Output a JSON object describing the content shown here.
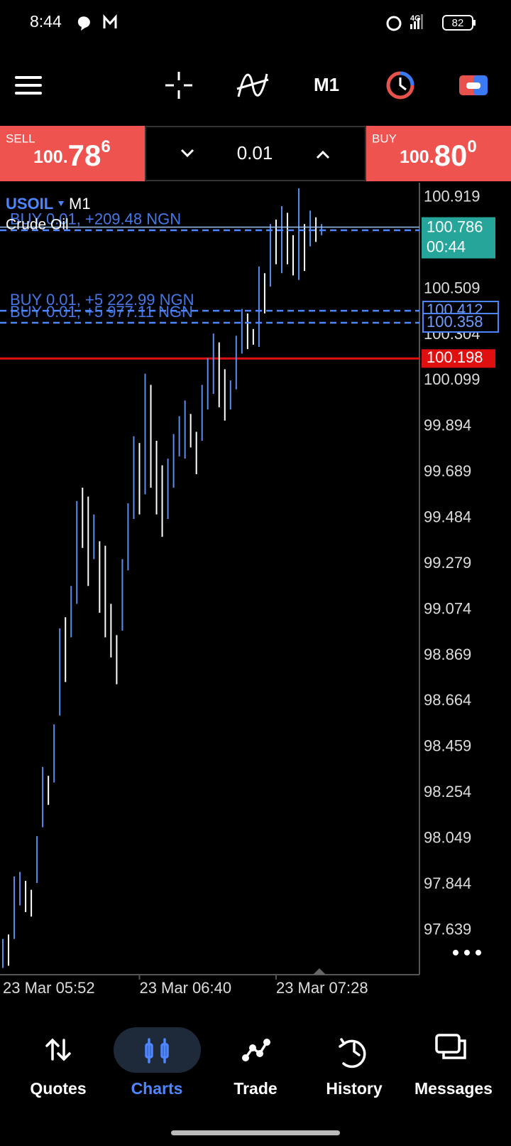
{
  "status_bar": {
    "time": "8:44",
    "network": "4G",
    "battery": "82"
  },
  "toolbar": {
    "timeframe": "M1"
  },
  "trade_panel": {
    "sell": {
      "label": "SELL",
      "price_prefix": "100.",
      "price_main": "78",
      "price_sup": "6"
    },
    "volume": "0.01",
    "buy": {
      "label": "BUY",
      "price_prefix": "100.",
      "price_main": "80",
      "price_sup": "0"
    }
  },
  "chart_data": {
    "type": "ohlc",
    "symbol": "USOIL",
    "timeframe": "M1",
    "description": "Crude Oil",
    "categories": [
      "23 Mar 05:52",
      null,
      null,
      null,
      null,
      null,
      null,
      null,
      null,
      null,
      null,
      null,
      null,
      null,
      null,
      null,
      null,
      null,
      null,
      null,
      null,
      null,
      null,
      null,
      "23 Mar 06:40",
      null,
      null,
      null,
      null,
      null,
      null,
      null,
      null,
      null,
      null,
      null,
      null,
      null,
      null,
      null,
      null,
      null,
      null,
      null,
      null,
      null,
      null,
      null,
      "23 Mar 07:28",
      null,
      null,
      null,
      null,
      null,
      null,
      null,
      null
    ],
    "high": [
      97.6,
      97.62,
      97.88,
      97.9,
      97.86,
      97.82,
      98.06,
      98.37,
      98.33,
      98.56,
      98.99,
      99.04,
      99.18,
      99.56,
      99.62,
      99.58,
      99.5,
      99.38,
      99.36,
      99.1,
      98.96,
      99.3,
      99.55,
      99.85,
      99.82,
      100.13,
      100.08,
      99.83,
      99.72,
      99.75,
      99.86,
      99.94,
      100.01,
      99.95,
      99.87,
      100.08,
      100.2,
      100.31,
      100.27,
      100.15,
      100.1,
      100.3,
      100.42,
      100.4,
      100.33,
      100.61,
      100.58,
      100.8,
      100.82,
      100.88,
      100.85,
      100.75,
      100.96,
      100.8,
      100.86,
      100.83,
      100.8
    ],
    "low": [
      97.47,
      97.48,
      97.6,
      97.75,
      97.72,
      97.7,
      97.85,
      98.1,
      98.2,
      98.3,
      98.6,
      98.75,
      98.95,
      99.1,
      99.35,
      99.18,
      99.3,
      99.06,
      98.95,
      98.86,
      98.74,
      98.98,
      99.25,
      99.48,
      99.5,
      99.59,
      99.62,
      99.5,
      99.4,
      99.48,
      99.62,
      99.76,
      99.75,
      99.8,
      99.68,
      99.83,
      99.97,
      100.04,
      99.98,
      99.92,
      99.97,
      100.06,
      100.22,
      100.24,
      100.26,
      100.25,
      100.4,
      100.52,
      100.62,
      100.58,
      100.62,
      100.57,
      100.55,
      100.59,
      100.7,
      100.72,
      100.75
    ],
    "up": [
      true,
      false,
      true,
      true,
      false,
      false,
      true,
      true,
      false,
      true,
      true,
      false,
      true,
      true,
      false,
      false,
      true,
      false,
      false,
      false,
      false,
      true,
      true,
      true,
      false,
      true,
      false,
      false,
      false,
      true,
      true,
      true,
      true,
      false,
      false,
      true,
      true,
      true,
      false,
      false,
      true,
      true,
      true,
      false,
      false,
      true,
      false,
      true,
      false,
      true,
      false,
      false,
      true,
      false,
      true,
      false,
      true
    ],
    "up_color": "#5b8def",
    "down_color": "#ffffff",
    "ylim": [
      97.44,
      100.985
    ],
    "yticks": [
      100.919,
      100.509,
      100.304,
      100.099,
      99.894,
      99.689,
      99.484,
      99.279,
      99.074,
      98.869,
      98.664,
      98.459,
      98.254,
      98.049,
      97.844,
      97.639
    ],
    "bid_line": {
      "value": 100.786,
      "countdown": "00:44",
      "color": "#26a69a"
    },
    "positions": [
      {
        "label": "BUY 0.01,  +209.48 NGN",
        "value": 100.772,
        "price_box": false
      },
      {
        "label": "BUY 0.01,  +5 222.99 NGN",
        "value": 100.412,
        "price_box": true
      },
      {
        "label": "BUY 0.01,  +5 977.11 NGN",
        "value": 100.358,
        "price_box": true
      }
    ],
    "position_color": "#4d86ff",
    "level_line": {
      "value": 100.198,
      "color": "#e01010"
    }
  },
  "bottom_nav": {
    "items": [
      "Quotes",
      "Charts",
      "Trade",
      "History",
      "Messages"
    ],
    "active_index": 1
  }
}
